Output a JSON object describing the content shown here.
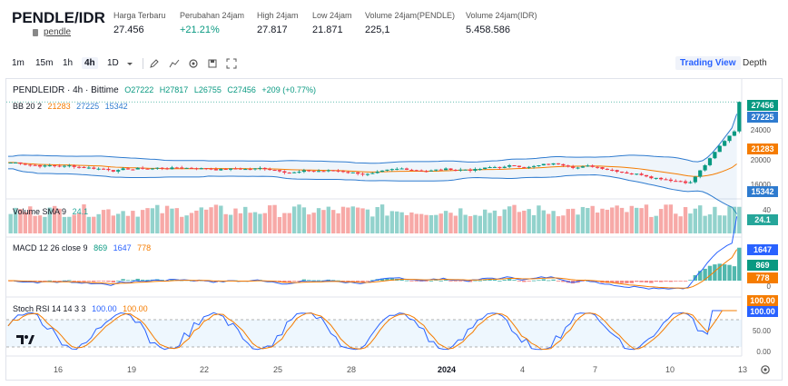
{
  "header": {
    "pair": "PENDLE/IDR",
    "pair_link": "pendle",
    "stats": [
      {
        "label": "Harga Terbaru",
        "value": "27.456",
        "up": false
      },
      {
        "label": "Perubahan 24jam",
        "value": "+21.21%",
        "up": true
      },
      {
        "label": "High 24jam",
        "value": "27.817",
        "up": false
      },
      {
        "label": "Low 24jam",
        "value": "21.871",
        "up": false
      },
      {
        "label": "Volume 24jam(PENDLE)",
        "value": "225,1",
        "up": false
      },
      {
        "label": "Volume 24jam(IDR)",
        "value": "5.458.586",
        "up": false
      }
    ]
  },
  "toolbar": {
    "timeframes": [
      "1m",
      "15m",
      "1h",
      "4h",
      "1D"
    ],
    "active_timeframe": "4h",
    "trading_view": "Trading View",
    "depth": "Depth",
    "icons": [
      "chevron-down-icon",
      "pencil-icon",
      "indicator-icon",
      "settings-icon",
      "save-icon",
      "fullscreen-icon"
    ]
  },
  "legends": {
    "main": {
      "title": "PENDLEIDR · 4h · Bittime",
      "o": "O27222",
      "h": "H27817",
      "l": "L26755",
      "c": "C27456",
      "chg": "+209 (+0.77%)"
    },
    "bb": {
      "name": "BB 20 2",
      "basis": "21283",
      "upper": "27225",
      "lower": "15342"
    },
    "vol": {
      "name": "Volume SMA 9",
      "value": "24.1"
    },
    "macd": {
      "name": "MACD 12 26 close 9",
      "hist": "869",
      "macd": "1647",
      "signal": "778"
    },
    "stoch": {
      "name": "Stoch RSI 14 14 3 3",
      "k": "100.00",
      "d": "100.00"
    }
  },
  "axes": {
    "price_ticks": [
      "24000",
      "20000",
      "16000"
    ],
    "price_badges": [
      {
        "text": "27456",
        "color": "#089981"
      },
      {
        "text": "27225",
        "color": "#2e7bcf"
      },
      {
        "text": "21283",
        "color": "#f57c00"
      },
      {
        "text": "15342",
        "color": "#2e7bcf"
      }
    ],
    "vol_ticks": [
      "40"
    ],
    "vol_badge": {
      "text": "24.1",
      "color": "#26a69a"
    },
    "macd_badges": [
      {
        "text": "1647",
        "color": "#2962ff"
      },
      {
        "text": "869",
        "color": "#089981"
      },
      {
        "text": "778",
        "color": "#f57c00"
      }
    ],
    "macd_ticks": [
      "0"
    ],
    "stoch_badges": [
      {
        "text": "100.00",
        "color": "#f57c00"
      },
      {
        "text": "100.00",
        "color": "#2962ff"
      }
    ],
    "stoch_ticks": [
      "50.00",
      "0.00"
    ],
    "dates": [
      "16",
      "19",
      "22",
      "25",
      "28",
      "2024",
      "4",
      "7",
      "10",
      "13"
    ]
  },
  "colors": {
    "up": "#089981",
    "down": "#f23645",
    "bb": "#2e7bcf",
    "basis": "#f57c00"
  }
}
